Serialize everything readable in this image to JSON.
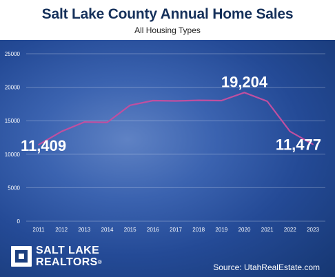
{
  "chart_data": {
    "type": "line",
    "title": "Salt Lake County Annual Home Sales",
    "subtitle": "All Housing Types",
    "x": [
      "2011",
      "2012",
      "2013",
      "2014",
      "2015",
      "2016",
      "2017",
      "2018",
      "2019",
      "2020",
      "2021",
      "2022",
      "2023"
    ],
    "series": [
      {
        "values": [
          11409,
          13400,
          14800,
          14750,
          17300,
          18000,
          17950,
          18050,
          18000,
          19204,
          17900,
          13400,
          11477
        ],
        "color": "#c04fa0"
      }
    ],
    "ylim": [
      0,
      25000
    ],
    "yticks": [
      "0",
      "5000",
      "10000",
      "15000",
      "20000",
      "25000"
    ],
    "grid": true,
    "annotations": [
      {
        "label": "11,409",
        "x": "2011"
      },
      {
        "label": "19,204",
        "x": "2020"
      },
      {
        "label": "11,477",
        "x": "2023"
      }
    ]
  },
  "branding": {
    "logo_line1": "SALT LAKE",
    "logo_line2": "REALTORS",
    "logo_reg": "®"
  },
  "source": "Source: UtahRealEstate.com"
}
